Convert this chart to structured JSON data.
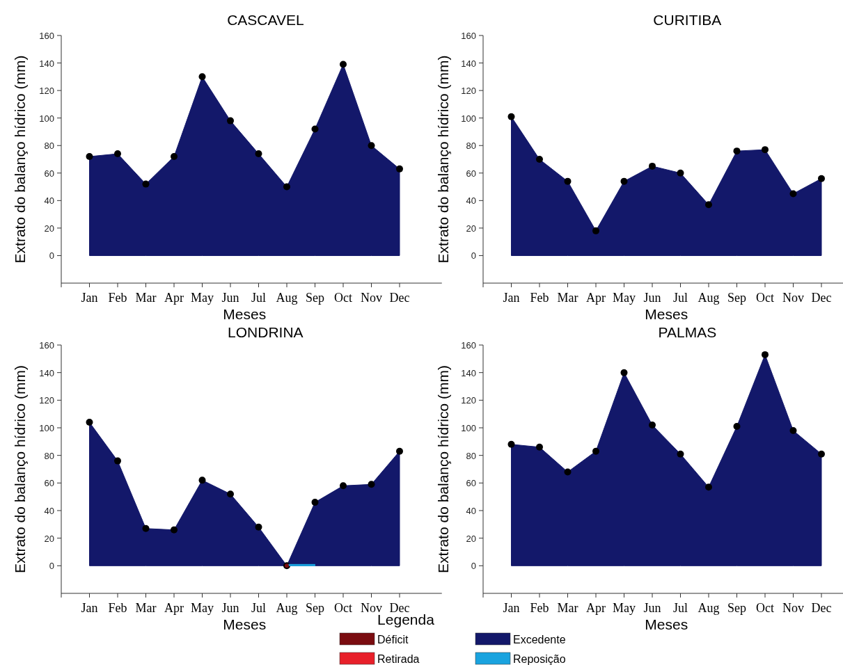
{
  "chart_data": [
    {
      "type": "area",
      "title": "CASCAVEL",
      "xlabel": "Meses",
      "ylabel": "Extrato do balanço hídrico (mm)",
      "categories": [
        "Jan",
        "Feb",
        "Mar",
        "Apr",
        "May",
        "Jun",
        "Jul",
        "Aug",
        "Sep",
        "Oct",
        "Nov",
        "Dec"
      ],
      "ylim": [
        -20,
        160
      ],
      "yticks": [
        0,
        20,
        40,
        60,
        80,
        100,
        120,
        140,
        160
      ],
      "marker": "circle",
      "legend": false,
      "series": [
        {
          "color": "#13186a",
          "values": [
            72,
            74,
            52,
            72,
            130,
            98,
            74,
            50,
            92,
            139,
            80,
            63
          ]
        }
      ]
    },
    {
      "type": "area",
      "title": "CURITIBA",
      "xlabel": "Meses",
      "ylabel": "Extrato do balanço hídrico (mm)",
      "categories": [
        "Jan",
        "Feb",
        "Mar",
        "Apr",
        "May",
        "Jun",
        "Jul",
        "Aug",
        "Sep",
        "Oct",
        "Nov",
        "Dec"
      ],
      "ylim": [
        -20,
        160
      ],
      "yticks": [
        0,
        20,
        40,
        60,
        80,
        100,
        120,
        140,
        160
      ],
      "marker": "circle",
      "legend": false,
      "series": [
        {
          "color": "#13186a",
          "values": [
            101,
            70,
            54,
            18,
            54,
            65,
            60,
            37,
            76,
            77,
            45,
            56
          ]
        }
      ]
    },
    {
      "type": "area",
      "title": "LONDRINA",
      "xlabel": "Meses",
      "ylabel": "Extrato do balanço hídrico (mm)",
      "categories": [
        "Jan",
        "Feb",
        "Mar",
        "Apr",
        "May",
        "Jun",
        "Jul",
        "Aug",
        "Sep",
        "Oct",
        "Nov",
        "Dec"
      ],
      "ylim": [
        -20,
        160
      ],
      "yticks": [
        0,
        20,
        40,
        60,
        80,
        100,
        120,
        140,
        160
      ],
      "legend": "bottom right",
      "legend_title": "Legenda",
      "series": [
        {
          "name": "Déficit",
          "type": "scatter",
          "marker": "circle",
          "color": "#7a0c10",
          "values": [
            null,
            null,
            null,
            null,
            null,
            null,
            null,
            0,
            null,
            null,
            null,
            null
          ]
        },
        {
          "name": "Retirada",
          "type": "scatter",
          "marker": "none",
          "color": "#e8202a",
          "values": [
            null,
            null,
            null,
            null,
            null,
            null,
            null,
            null,
            null,
            null,
            null,
            null
          ]
        },
        {
          "name": "Excedente",
          "marker": "circle",
          "color": "#13186a",
          "values": [
            104,
            76,
            27,
            26,
            62,
            52,
            28,
            0,
            46,
            58,
            59,
            83
          ]
        },
        {
          "name": "Reposição",
          "marker": "none",
          "color": "#1aa3df",
          "values": [
            null,
            null,
            null,
            null,
            null,
            null,
            null,
            1,
            1,
            null,
            null,
            null
          ]
        }
      ]
    },
    {
      "type": "area",
      "title": "PALMAS",
      "xlabel": "Meses",
      "ylabel": "Extrato do balanço hídrico (mm)",
      "categories": [
        "Jan",
        "Feb",
        "Mar",
        "Apr",
        "May",
        "Jun",
        "Jul",
        "Aug",
        "Sep",
        "Oct",
        "Nov",
        "Dec"
      ],
      "ylim": [
        -20,
        160
      ],
      "yticks": [
        0,
        20,
        40,
        60,
        80,
        100,
        120,
        140,
        160
      ],
      "marker": "circle",
      "legend": false,
      "series": [
        {
          "color": "#13186a",
          "values": [
            88,
            86,
            68,
            83,
            140,
            102,
            81,
            57,
            101,
            153,
            98,
            81
          ]
        }
      ]
    }
  ]
}
